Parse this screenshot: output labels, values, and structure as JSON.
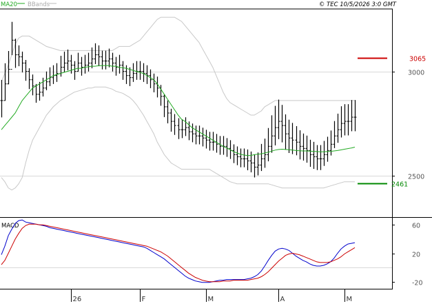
{
  "header": {
    "legend_ma20": "MA20",
    "legend_bbands": "BBands",
    "copyright": "© TEC 10/5/2026 3:0 GMT"
  },
  "colors": {
    "ma20": "#22aa22",
    "bbands": "#c8c8c8",
    "price_bars": "#000000",
    "resistance": "#cc0000",
    "support": "#008800",
    "macd_line": "#0000cc",
    "signal_line": "#cc0000",
    "axis": "#000000",
    "grid": "#d8d8d8",
    "label_text": "#555555"
  },
  "chart_data": [
    {
      "type": "line",
      "title": "",
      "xlabel": "",
      "ylabel": "",
      "ylim": [
        2300,
        3300
      ],
      "grid": true,
      "y_ticks": [
        {
          "value": 3000,
          "label": "3000"
        },
        {
          "value": 2500,
          "label": "2500"
        }
      ],
      "x_ticks": [
        {
          "index": 20,
          "label": "26"
        },
        {
          "index": 40,
          "label": "F"
        },
        {
          "index": 59,
          "label": "M"
        },
        {
          "index": 80,
          "label": "A"
        },
        {
          "index": 99,
          "label": "M"
        }
      ],
      "levels": [
        {
          "name": "resistance",
          "value": 3065,
          "label": "3065"
        },
        {
          "name": "support",
          "value": 2461,
          "label": "2461"
        }
      ],
      "bars": {
        "count": 103,
        "close": [
          2860,
          2940,
          3010,
          3150,
          3080,
          3070,
          3040,
          3000,
          2960,
          2930,
          2890,
          2900,
          2920,
          2950,
          2970,
          2980,
          2990,
          3020,
          3040,
          3050,
          3030,
          3000,
          3040,
          3020,
          3030,
          3040,
          3060,
          3080,
          3070,
          3050,
          3050,
          3060,
          3040,
          3020,
          3030,
          3000,
          2980,
          2970,
          2990,
          3000,
          3000,
          2990,
          2980,
          2960,
          2940,
          2920,
          2880,
          2830,
          2800,
          2760,
          2740,
          2720,
          2720,
          2730,
          2710,
          2700,
          2690,
          2690,
          2680,
          2670,
          2660,
          2660,
          2650,
          2640,
          2640,
          2630,
          2620,
          2600,
          2590,
          2580,
          2580,
          2570,
          2560,
          2540,
          2550,
          2580,
          2600,
          2640,
          2690,
          2730,
          2760,
          2740,
          2700,
          2680,
          2670,
          2660,
          2640,
          2630,
          2620,
          2600,
          2590,
          2580,
          2580,
          2600,
          2620,
          2650,
          2690,
          2720,
          2750,
          2760,
          2760,
          2780,
          2780
        ],
        "range": [
          180,
          180,
          160,
          160,
          140,
          100,
          100,
          100,
          100,
          100,
          90,
          90,
          90,
          90,
          90,
          90,
          90,
          100,
          100,
          100,
          90,
          90,
          90,
          90,
          90,
          90,
          100,
          100,
          100,
          90,
          90,
          90,
          90,
          90,
          90,
          90,
          90,
          90,
          90,
          90,
          90,
          90,
          90,
          90,
          90,
          100,
          100,
          110,
          110,
          110,
          100,
          100,
          90,
          90,
          90,
          90,
          90,
          90,
          90,
          90,
          90,
          90,
          90,
          90,
          90,
          90,
          90,
          90,
          90,
          90,
          90,
          100,
          100,
          110,
          110,
          130,
          140,
          160,
          180,
          190,
          190,
          180,
          170,
          160,
          150,
          140,
          140,
          130,
          130,
          130,
          130,
          120,
          120,
          120,
          120,
          120,
          130,
          140,
          150,
          150,
          150,
          150,
          150
        ],
        "ma20": [
          2720,
          2740,
          2760,
          2780,
          2800,
          2830,
          2860,
          2880,
          2900,
          2920,
          2930,
          2940,
          2950,
          2960,
          2970,
          2980,
          2985,
          2990,
          2995,
          3000,
          3005,
          3010,
          3015,
          3015,
          3020,
          3022,
          3025,
          3025,
          3027,
          3028,
          3028,
          3028,
          3025,
          3025,
          3020,
          3018,
          3015,
          3010,
          3005,
          3000,
          2995,
          2990,
          2980,
          2970,
          2960,
          2940,
          2915,
          2890,
          2865,
          2840,
          2815,
          2790,
          2770,
          2760,
          2745,
          2730,
          2720,
          2710,
          2700,
          2690,
          2680,
          2670,
          2660,
          2650,
          2640,
          2632,
          2624,
          2615,
          2608,
          2602,
          2598,
          2596,
          2596,
          2600,
          2602,
          2604,
          2608,
          2612,
          2617,
          2622,
          2625,
          2626,
          2625,
          2624,
          2622,
          2620,
          2619,
          2618,
          2618,
          2617,
          2616,
          2615,
          2614,
          2614,
          2615,
          2616,
          2618,
          2620,
          2623,
          2626,
          2629,
          2632,
          2636
        ],
        "bb_upper": [
          2950,
          2990,
          3030,
          3080,
          3130,
          3160,
          3170,
          3170,
          3170,
          3160,
          3150,
          3140,
          3130,
          3120,
          3115,
          3110,
          3105,
          3100,
          3100,
          3100,
          3100,
          3100,
          3100,
          3100,
          3100,
          3100,
          3100,
          3100,
          3100,
          3100,
          3100,
          3100,
          3100,
          3110,
          3120,
          3120,
          3120,
          3120,
          3130,
          3140,
          3150,
          3170,
          3190,
          3210,
          3230,
          3250,
          3260,
          3260,
          3260,
          3260,
          3260,
          3250,
          3240,
          3220,
          3200,
          3180,
          3160,
          3140,
          3110,
          3080,
          3050,
          3020,
          2980,
          2940,
          2900,
          2870,
          2850,
          2840,
          2830,
          2820,
          2810,
          2800,
          2790,
          2790,
          2800,
          2810,
          2830,
          2840,
          2850,
          2860,
          2860,
          2860,
          2860,
          2860,
          2860,
          2860,
          2860,
          2860,
          2860,
          2860,
          2860,
          2860,
          2860,
          2860,
          2860,
          2860,
          2860,
          2860,
          2860,
          2860,
          2860,
          2860,
          2860
        ],
        "bb_lower": [
          2490,
          2470,
          2440,
          2430,
          2440,
          2460,
          2490,
          2560,
          2620,
          2670,
          2700,
          2730,
          2760,
          2790,
          2810,
          2830,
          2845,
          2860,
          2870,
          2880,
          2890,
          2900,
          2905,
          2910,
          2915,
          2920,
          2920,
          2925,
          2925,
          2925,
          2925,
          2920,
          2915,
          2905,
          2900,
          2895,
          2885,
          2875,
          2860,
          2840,
          2815,
          2790,
          2760,
          2730,
          2700,
          2660,
          2630,
          2600,
          2580,
          2560,
          2550,
          2540,
          2530,
          2530,
          2530,
          2530,
          2530,
          2530,
          2530,
          2530,
          2530,
          2520,
          2510,
          2500,
          2490,
          2480,
          2470,
          2465,
          2460,
          2460,
          2460,
          2460,
          2460,
          2460,
          2460,
          2460,
          2460,
          2460,
          2455,
          2450,
          2445,
          2440,
          2440,
          2440,
          2440,
          2440,
          2440,
          2440,
          2440,
          2440,
          2440,
          2440,
          2440,
          2440,
          2445,
          2450,
          2455,
          2460,
          2465,
          2470,
          2470,
          2470,
          2470
        ]
      }
    },
    {
      "type": "line",
      "title": "",
      "name": "MACD",
      "xlabel": "",
      "ylabel": "",
      "ylim": [
        -30,
        70
      ],
      "grid": true,
      "y_ticks": [
        {
          "value": 60,
          "label": "60"
        },
        {
          "value": 20,
          "label": "20"
        },
        {
          "value": -20,
          "label": "-20"
        }
      ],
      "zero_line": 0,
      "series": [
        {
          "key": "macd",
          "values": [
            18,
            30,
            45,
            54,
            62,
            66,
            67,
            64,
            63,
            62,
            61,
            60,
            59,
            58,
            56,
            55,
            54,
            53,
            52,
            51,
            50,
            49,
            48,
            47,
            46,
            45,
            44,
            43,
            42,
            41,
            40,
            39,
            38,
            37,
            36,
            35,
            34,
            33,
            32,
            31,
            30,
            29,
            27,
            24,
            21,
            18,
            15,
            12,
            8,
            4,
            0,
            -4,
            -8,
            -12,
            -15,
            -17,
            -19,
            -20,
            -21,
            -21,
            -21,
            -20,
            -19,
            -18,
            -18,
            -17,
            -17,
            -17,
            -17,
            -17,
            -17,
            -16,
            -15,
            -13,
            -10,
            -5,
            2,
            10,
            17,
            23,
            26,
            27,
            26,
            24,
            20,
            16,
            13,
            10,
            8,
            5,
            3,
            2,
            2,
            3,
            5,
            8,
            13,
            20,
            26,
            30,
            33,
            34,
            35
          ]
        },
        {
          "key": "signal",
          "values": [
            4,
            10,
            20,
            30,
            40,
            48,
            55,
            59,
            61,
            61,
            61,
            60,
            60,
            59,
            58,
            57,
            56,
            55,
            54,
            53,
            52,
            51,
            50,
            49,
            48,
            47,
            46,
            45,
            44,
            43,
            42,
            41,
            40,
            39,
            38,
            37,
            36,
            35,
            34,
            33,
            32,
            31,
            30,
            28,
            26,
            24,
            22,
            19,
            16,
            12,
            8,
            4,
            0,
            -4,
            -8,
            -11,
            -14,
            -16,
            -18,
            -19,
            -20,
            -20,
            -20,
            -20,
            -19,
            -19,
            -19,
            -18,
            -18,
            -18,
            -18,
            -18,
            -17,
            -16,
            -15,
            -13,
            -10,
            -6,
            -1,
            4,
            9,
            13,
            17,
            19,
            20,
            19,
            18,
            16,
            14,
            12,
            10,
            8,
            7,
            7,
            7,
            8,
            10,
            12,
            15,
            19,
            22,
            25,
            28
          ]
        }
      ]
    }
  ]
}
